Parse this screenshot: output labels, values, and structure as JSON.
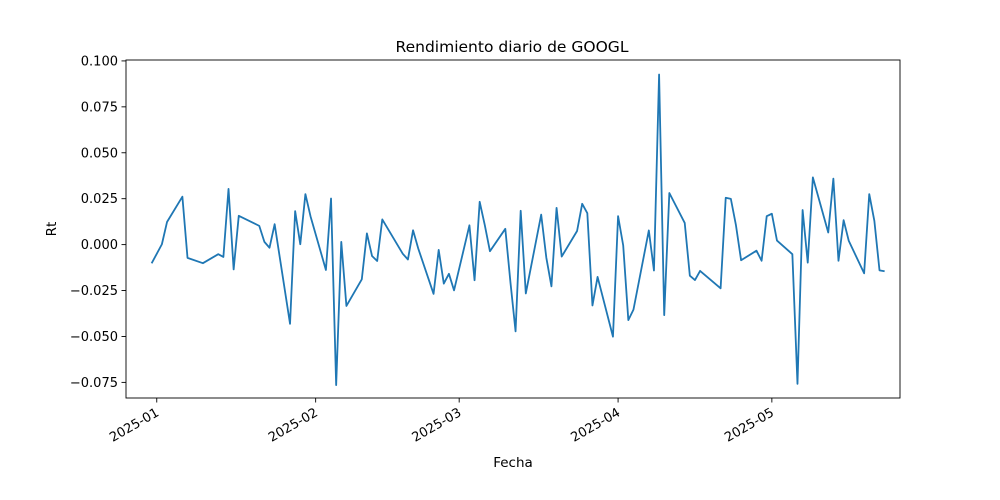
{
  "chart_data": {
    "type": "line",
    "title": "Rendimiento diario de GOOGL",
    "xlabel": "Fecha",
    "ylabel": "Rt",
    "x_type": "date",
    "xlim": [
      "2024-12-26",
      "2025-05-26"
    ],
    "ylim": [
      -0.0835,
      0.1005
    ],
    "yticks": [
      -0.075,
      -0.05,
      -0.025,
      0.0,
      0.025,
      0.05,
      0.075,
      0.1
    ],
    "ytick_labels": [
      "−0.075",
      "−0.050",
      "−0.025",
      "0.000",
      "0.025",
      "0.050",
      "0.075",
      "0.100"
    ],
    "xticks": [
      "2025-01-01",
      "2025-02-01",
      "2025-03-01",
      "2025-04-01",
      "2025-05-01"
    ],
    "xtick_labels": [
      "2025-01",
      "2025-02",
      "2025-03",
      "2025-04",
      "2025-05"
    ],
    "grid": false,
    "line_color": "#1f77b4",
    "series": [
      {
        "x": [
          "2024-12-31",
          "2025-01-02",
          "2025-01-03",
          "2025-01-06",
          "2025-01-07",
          "2025-01-10",
          "2025-01-13",
          "2025-01-14",
          "2025-01-15",
          "2025-01-16",
          "2025-01-17",
          "2025-01-21",
          "2025-01-22",
          "2025-01-23",
          "2025-01-24",
          "2025-01-27",
          "2025-01-28",
          "2025-01-29",
          "2025-01-30",
          "2025-01-31",
          "2025-02-03",
          "2025-02-04",
          "2025-02-05",
          "2025-02-06",
          "2025-02-07",
          "2025-02-10",
          "2025-02-11",
          "2025-02-12",
          "2025-02-13",
          "2025-02-14",
          "2025-02-18",
          "2025-02-19",
          "2025-02-20",
          "2025-02-21",
          "2025-02-24",
          "2025-02-25",
          "2025-02-26",
          "2025-02-27",
          "2025-02-28",
          "2025-03-03",
          "2025-03-04",
          "2025-03-05",
          "2025-03-06",
          "2025-03-07",
          "2025-03-10",
          "2025-03-11",
          "2025-03-12",
          "2025-03-13",
          "2025-03-14",
          "2025-03-17",
          "2025-03-18",
          "2025-03-19",
          "2025-03-20",
          "2025-03-21",
          "2025-03-24",
          "2025-03-25",
          "2025-03-26",
          "2025-03-27",
          "2025-03-28",
          "2025-03-31",
          "2025-04-01",
          "2025-04-02",
          "2025-04-03",
          "2025-04-04",
          "2025-04-07",
          "2025-04-08",
          "2025-04-09",
          "2025-04-10",
          "2025-04-11",
          "2025-04-14",
          "2025-04-15",
          "2025-04-16",
          "2025-04-17",
          "2025-04-21",
          "2025-04-22",
          "2025-04-23",
          "2025-04-24",
          "2025-04-25",
          "2025-04-28",
          "2025-04-29",
          "2025-04-30",
          "2025-05-01",
          "2025-05-02",
          "2025-05-05",
          "2025-05-06",
          "2025-05-07",
          "2025-05-08",
          "2025-05-09",
          "2025-05-12",
          "2025-05-13",
          "2025-05-14",
          "2025-05-15",
          "2025-05-16",
          "2025-05-19",
          "2025-05-20",
          "2025-05-21",
          "2025-05-22",
          "2025-05-23"
        ],
        "y": [
          -0.0102,
          0.0002,
          0.0123,
          0.0261,
          -0.0072,
          -0.0101,
          -0.0052,
          -0.0067,
          0.0303,
          -0.0135,
          0.0157,
          0.0102,
          0.0015,
          -0.0017,
          0.0111,
          -0.0431,
          0.0182,
          0.0002,
          0.0275,
          0.0154,
          -0.0138,
          0.0251,
          -0.0765,
          0.0015,
          -0.0334,
          -0.0189,
          0.0061,
          -0.0062,
          -0.0089,
          0.0137,
          -0.005,
          -0.0081,
          0.0078,
          -0.002,
          -0.0268,
          -0.0029,
          -0.0212,
          -0.0159,
          -0.0249,
          0.0105,
          -0.0194,
          0.0233,
          0.0106,
          -0.0036,
          0.0086,
          -0.0205,
          -0.0472,
          0.0184,
          -0.0266,
          0.0163,
          -0.0071,
          -0.0227,
          0.02,
          -0.0065,
          0.0074,
          0.0222,
          0.0171,
          -0.0331,
          -0.0176,
          -0.0501,
          0.0155,
          -0.0005,
          -0.0411,
          -0.0354,
          0.0077,
          -0.0141,
          0.0926,
          -0.0384,
          0.0281,
          0.0118,
          -0.0169,
          -0.0193,
          -0.0143,
          -0.0238,
          0.0255,
          0.0249,
          0.0105,
          -0.0085,
          -0.0033,
          -0.0088,
          0.0155,
          0.0168,
          0.0022,
          -0.0052,
          -0.0758,
          0.0188,
          -0.0098,
          0.0366,
          0.0066,
          0.0359,
          -0.0088,
          0.0133,
          0.0021,
          -0.0156,
          0.0275,
          0.0129,
          -0.014,
          -0.0145
        ]
      }
    ]
  }
}
